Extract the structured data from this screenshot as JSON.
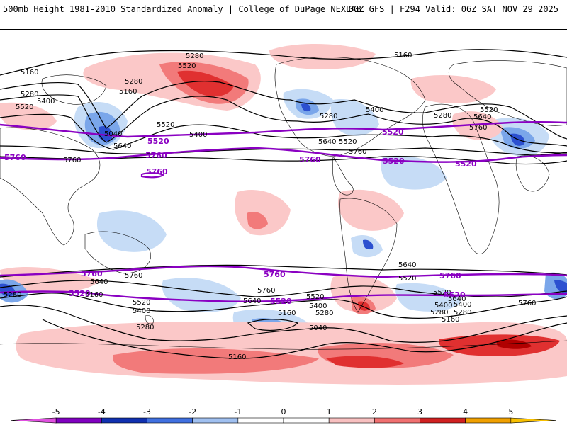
{
  "header": {
    "left": "500mb Height 1981-2010 Standardized Anomaly | College of DuPage NEXLAB",
    "right": "00Z GFS | F294 Valid: 06Z SAT NOV 29 2025"
  },
  "contour_labels": {
    "black": [
      "5160",
      "5280",
      "5520",
      "5280",
      "5160",
      "5280",
      "5400",
      "5520",
      "5040",
      "5640",
      "5760",
      "5520",
      "5400",
      "5280",
      "5520",
      "5640",
      "5760",
      "5160",
      "5280",
      "5400",
      "5520",
      "5640",
      "5760",
      "5280",
      "5640",
      "5760",
      "5520",
      "5400",
      "5280",
      "5160",
      "5040",
      "5640",
      "5520",
      "5400",
      "5280",
      "5160",
      "5760",
      "5640",
      "5520",
      "5400",
      "5280",
      "5160",
      "5760",
      "5640",
      "5520",
      "5400",
      "5280",
      "5160"
    ],
    "purple": [
      "5520",
      "5760",
      "5760",
      "5520",
      "5760",
      "5520",
      "5760",
      "5520",
      "5760",
      "5520",
      "5760",
      "5520",
      "5760",
      "5520"
    ]
  },
  "colors": {
    "contour": "#000000",
    "highlight_contour": "#8a00c2",
    "coastline": "#000000",
    "pos1": "#fbc8c8",
    "pos2": "#f27a7a",
    "pos3": "#e03030",
    "pos4": "#b00000",
    "neg1": "#c6dcf6",
    "neg2": "#7aa6ea",
    "neg3": "#2c50d0"
  },
  "legend": {
    "ticks": [
      "-5",
      "-4",
      "-3",
      "-2",
      "-1",
      "0",
      "1",
      "2",
      "3",
      "4",
      "5"
    ],
    "colors": [
      "#e050e0",
      "#8000c0",
      "#1030b0",
      "#4070e0",
      "#a0c0f0",
      "#ffffff",
      "#ffffff",
      "#f8c0c0",
      "#f07070",
      "#d02020",
      "#f0a000",
      "#f8c000"
    ]
  }
}
